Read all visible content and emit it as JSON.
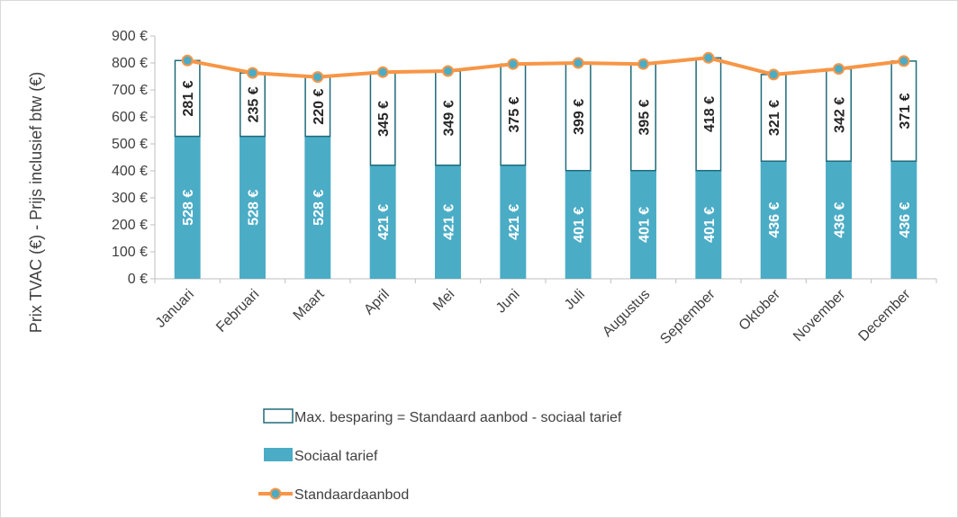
{
  "chart_data": {
    "type": "bar",
    "stacked": true,
    "categories": [
      "Januari",
      "Februari",
      "Maart",
      "April",
      "Mei",
      "Juni",
      "Juli",
      "Augustus",
      "September",
      "Oktober",
      "November",
      "December"
    ],
    "series": [
      {
        "name": "Sociaal tarief",
        "type": "bar",
        "color": "#4bacc6",
        "values": [
          528,
          528,
          528,
          421,
          421,
          421,
          401,
          401,
          401,
          436,
          436,
          436
        ],
        "labels": [
          "528 €",
          "528 €",
          "528 €",
          "421 €",
          "421 €",
          "421 €",
          "401 €",
          "401 €",
          "401 €",
          "436 €",
          "436 €",
          "436 €"
        ]
      },
      {
        "name": "Max. besparing = Standaard aanbod - sociaal tarief",
        "type": "bar",
        "color": "#ffffff",
        "border": "#1f6b7a",
        "values": [
          281,
          235,
          220,
          345,
          349,
          375,
          399,
          395,
          418,
          321,
          342,
          371
        ],
        "labels": [
          "281 €",
          "235 €",
          "220 €",
          "345 €",
          "349 €",
          "375 €",
          "399 €",
          "395 €",
          "418 €",
          "321 €",
          "342 €",
          "371 €"
        ]
      },
      {
        "name": "Standaardaanbod",
        "type": "line",
        "color": "#f79646",
        "marker_color": "#4bacc6",
        "values": [
          809,
          763,
          748,
          766,
          770,
          796,
          800,
          796,
          819,
          757,
          778,
          807
        ]
      }
    ],
    "ylabel": "Prix TVAC (€) - Prijs inclusief btw (€)",
    "ylim": [
      0,
      900
    ],
    "yticks": [
      0,
      100,
      200,
      300,
      400,
      500,
      600,
      700,
      800,
      900
    ],
    "ytick_labels": [
      "0 €",
      "100 €",
      "200 €",
      "300 €",
      "400 €",
      "500 €",
      "600 €",
      "700 €",
      "800 €",
      "900 €"
    ],
    "grid": false,
    "legend_position": "bottom"
  }
}
